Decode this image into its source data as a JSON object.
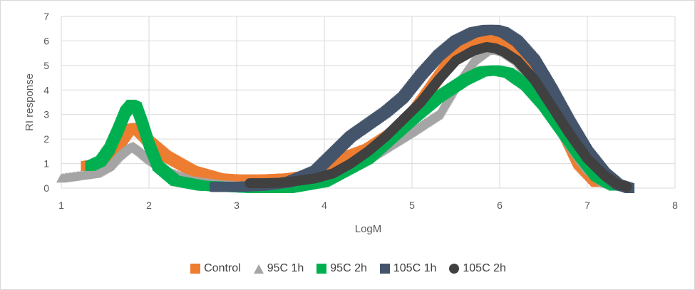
{
  "chart_data": {
    "type": "scatter",
    "title": "",
    "xlabel": "LogM",
    "ylabel": "RI response",
    "xlim": [
      1,
      8
    ],
    "ylim": [
      0,
      7
    ],
    "xticks": [
      1,
      2,
      3,
      4,
      5,
      6,
      7,
      8
    ],
    "yticks": [
      0,
      1,
      2,
      3,
      4,
      5,
      6,
      7
    ],
    "grid": true,
    "legend_position": "bottom",
    "series": [
      {
        "name": "Control",
        "marker": "square",
        "color": "#ed7d31",
        "x": [
          1.28,
          1.45,
          1.6,
          1.7,
          1.78,
          1.85,
          1.92,
          2.0,
          2.2,
          2.5,
          2.8,
          3.0,
          3.3,
          3.6,
          3.9,
          4.2,
          4.5,
          4.8,
          5.0,
          5.2,
          5.4,
          5.6,
          5.8,
          5.9,
          6.0,
          6.1,
          6.3,
          6.5,
          6.7,
          6.9,
          7.1
        ],
        "y": [
          0.9,
          1.0,
          1.4,
          2.0,
          2.4,
          2.45,
          2.2,
          1.9,
          1.3,
          0.7,
          0.4,
          0.35,
          0.35,
          0.4,
          0.55,
          1.2,
          1.6,
          2.3,
          3.0,
          4.0,
          5.0,
          5.7,
          6.05,
          6.1,
          6.05,
          5.9,
          5.2,
          4.0,
          2.5,
          1.0,
          0.25
        ]
      },
      {
        "name": "95C 1h",
        "marker": "triangle",
        "color": "#a5a5a5",
        "x": [
          1.0,
          1.2,
          1.4,
          1.55,
          1.65,
          1.75,
          1.82,
          1.9,
          2.0,
          2.2,
          2.5,
          2.8,
          3.0,
          3.5,
          4.0,
          4.5,
          5.0,
          5.3,
          5.5,
          5.7,
          5.85,
          5.95,
          6.05,
          6.2,
          6.4,
          6.6,
          6.8,
          7.0,
          7.2,
          7.4
        ],
        "y": [
          0.4,
          0.5,
          0.6,
          0.9,
          1.3,
          1.6,
          1.7,
          1.5,
          1.2,
          0.7,
          0.3,
          0.15,
          0.1,
          0.1,
          0.4,
          1.2,
          2.3,
          3.0,
          4.2,
          5.2,
          5.6,
          5.65,
          5.55,
          5.2,
          4.3,
          3.0,
          1.8,
          0.8,
          0.2,
          0.05
        ]
      },
      {
        "name": "95C 2h",
        "marker": "square",
        "color": "#00b050",
        "x": [
          1.33,
          1.45,
          1.55,
          1.65,
          1.73,
          1.8,
          1.86,
          1.93,
          2.0,
          2.1,
          2.3,
          2.6,
          2.9,
          3.2,
          3.6,
          4.0,
          4.5,
          5.0,
          5.3,
          5.6,
          5.8,
          5.95,
          6.1,
          6.3,
          6.5,
          6.7,
          6.9,
          7.1,
          7.3
        ],
        "y": [
          0.9,
          1.1,
          1.6,
          2.4,
          3.1,
          3.4,
          3.3,
          2.6,
          1.8,
          0.9,
          0.3,
          0.1,
          0.05,
          0.0,
          0.0,
          0.25,
          1.2,
          2.8,
          3.7,
          4.4,
          4.75,
          4.8,
          4.7,
          4.2,
          3.4,
          2.4,
          1.4,
          0.5,
          0.1
        ]
      },
      {
        "name": "105C 1h",
        "marker": "square",
        "color": "#44546a",
        "x": [
          2.75,
          3.0,
          3.3,
          3.6,
          3.9,
          4.1,
          4.3,
          4.5,
          4.7,
          4.9,
          5.1,
          5.3,
          5.5,
          5.7,
          5.85,
          5.95,
          6.05,
          6.2,
          6.4,
          6.6,
          6.8,
          7.0,
          7.2,
          7.35,
          7.48
        ],
        "y": [
          0.05,
          0.05,
          0.1,
          0.25,
          0.7,
          1.4,
          2.1,
          2.6,
          3.1,
          3.7,
          4.6,
          5.4,
          6.0,
          6.35,
          6.45,
          6.45,
          6.35,
          6.0,
          5.2,
          4.0,
          2.7,
          1.5,
          0.6,
          0.15,
          0.0
        ]
      },
      {
        "name": "105C 2h",
        "marker": "circle",
        "color": "#404040",
        "x": [
          3.15,
          3.3,
          3.5,
          3.7,
          3.9,
          4.1,
          4.3,
          4.5,
          4.7,
          4.9,
          5.1,
          5.3,
          5.5,
          5.7,
          5.85,
          5.95,
          6.05,
          6.2,
          6.4,
          6.6,
          6.8,
          7.0,
          7.2,
          7.35,
          7.45
        ],
        "y": [
          0.2,
          0.2,
          0.22,
          0.3,
          0.4,
          0.6,
          1.0,
          1.5,
          2.1,
          2.8,
          3.5,
          4.4,
          5.2,
          5.6,
          5.75,
          5.7,
          5.55,
          5.2,
          4.4,
          3.3,
          2.2,
          1.2,
          0.5,
          0.15,
          0.05
        ]
      }
    ]
  }
}
